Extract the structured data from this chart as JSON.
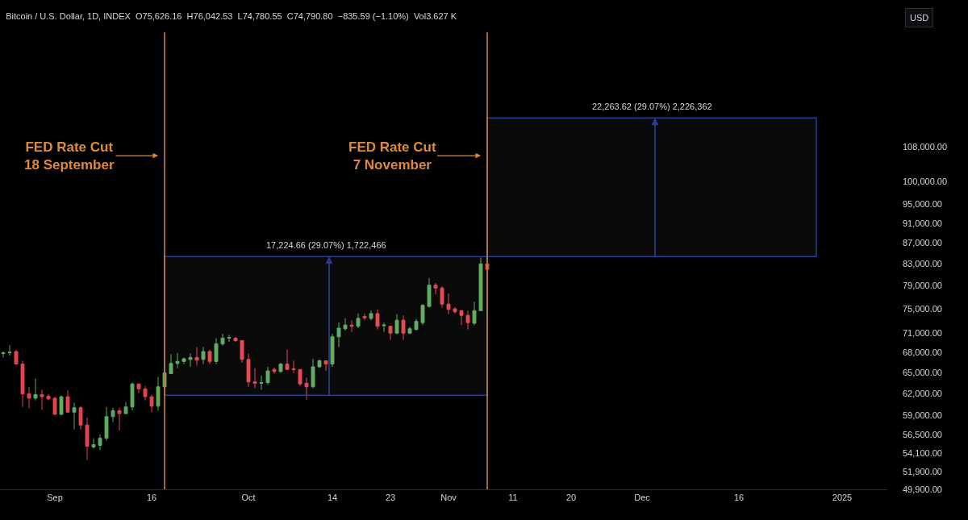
{
  "chart_data": {
    "type": "candlestick",
    "title": "Bitcoin / U.S. Dollar, 1D, INDEX  O75,626.16  H76,042.53  L74,780.55  C74,790.80  −835.59 (−1.10%)  Vol3.627 K",
    "colors": [
      "#5dab5d",
      "#5dab5d",
      "#e5444d",
      "#e5444d",
      "#e5444d",
      "#5dab5d",
      "#e5444d",
      "#e5444d",
      "#e5444d",
      "#5dab5d",
      "#e5444d",
      "#5dab5d",
      "#e5444d",
      "#e5444d",
      "#5dab5d",
      "#5dab5d",
      "#5dab5d",
      "#5dab5d",
      "#e5444d",
      "#5dab5d",
      "#5dab5d",
      "#e5444d",
      "#e5444d",
      "#e5444d",
      "#5dab5d",
      "#5dab5d",
      "#5dab5d",
      "#5dab5d",
      "#5dab5d",
      "#5dab5d",
      "#e5444d",
      "#5dab5d",
      "#e5444d",
      "#5dab5d",
      "#5dab5d",
      "#5dab5d",
      "#e5444d",
      "#e5444d",
      "#e5444d",
      "#e5444d",
      "#5dab5d",
      "#5dab5d",
      "#e5444d",
      "#5dab5d",
      "#e5444d",
      "#e5444d",
      "#e5444d",
      "#e5444d",
      "#5dab5d",
      "#5dab5d",
      "#e5444d",
      "#5dab5d",
      "#5dab5d",
      "#5dab5d",
      "#e5444d",
      "#5dab5d",
      "#e5444d",
      "#5dab5d",
      "#e5444d",
      "#5dab5d",
      "#e5444d",
      "#5dab5d",
      "#e5444d",
      "#5dab5d",
      "#5dab5d",
      "#5dab5d",
      "#5dab5d",
      "#e5444d",
      "#e5444d",
      "#e5444d",
      "#e5444d",
      "#e5444d",
      "#e5444d",
      "#5dab5d",
      "#5dab5d",
      "#e5444d"
    ],
    "x": [
      "2024-08-24",
      "2024-08-25",
      "2024-08-26",
      "2024-08-27",
      "2024-08-28",
      "2024-08-29",
      "2024-08-30",
      "2024-08-31",
      "2024-09-01",
      "2024-09-02",
      "2024-09-03",
      "2024-09-04",
      "2024-09-05",
      "2024-09-06",
      "2024-09-07",
      "2024-09-08",
      "2024-09-09",
      "2024-09-10",
      "2024-09-11",
      "2024-09-12",
      "2024-09-13",
      "2024-09-14",
      "2024-09-15",
      "2024-09-16",
      "2024-09-17",
      "2024-09-18",
      "2024-09-19",
      "2024-09-20",
      "2024-09-21",
      "2024-09-22",
      "2024-09-23",
      "2024-09-24",
      "2024-09-25",
      "2024-09-26",
      "2024-09-27",
      "2024-09-28",
      "2024-09-29",
      "2024-09-30",
      "2024-10-01",
      "2024-10-02",
      "2024-10-03",
      "2024-10-04",
      "2024-10-05",
      "2024-10-06",
      "2024-10-07",
      "2024-10-08",
      "2024-10-09",
      "2024-10-10",
      "2024-10-11",
      "2024-10-12",
      "2024-10-13",
      "2024-10-14",
      "2024-10-15",
      "2024-10-16",
      "2024-10-17",
      "2024-10-18",
      "2024-10-19",
      "2024-10-20",
      "2024-10-21",
      "2024-10-22",
      "2024-10-23",
      "2024-10-24",
      "2024-10-25",
      "2024-10-26",
      "2024-10-27",
      "2024-10-28",
      "2024-10-29",
      "2024-10-30",
      "2024-10-31",
      "2024-11-01",
      "2024-11-02",
      "2024-11-03",
      "2024-11-04",
      "2024-11-05",
      "2024-11-06",
      "2024-11-07"
    ],
    "ohlc": [
      [
        67800,
        68100,
        67200,
        67900
      ],
      [
        67900,
        69100,
        67500,
        68000
      ],
      [
        68100,
        68400,
        66200,
        66200
      ],
      [
        66200,
        66700,
        60100,
        61900
      ],
      [
        61900,
        62900,
        59900,
        61300
      ],
      [
        61300,
        64100,
        61000,
        61800
      ],
      [
        61800,
        62500,
        59700,
        61500
      ],
      [
        61600,
        61900,
        61000,
        61200
      ],
      [
        61300,
        61500,
        59100,
        59100
      ],
      [
        59100,
        61700,
        59000,
        61500
      ],
      [
        61500,
        62400,
        59300,
        59400
      ],
      [
        59400,
        60700,
        57100,
        60000
      ],
      [
        60000,
        60200,
        57100,
        57700
      ],
      [
        57700,
        58700,
        53300,
        55000
      ],
      [
        54900,
        56000,
        54700,
        55200
      ],
      [
        55100,
        56500,
        54500,
        56000
      ],
      [
        56000,
        60100,
        55700,
        58800
      ],
      [
        58800,
        60000,
        58100,
        59600
      ],
      [
        59600,
        60000,
        57000,
        59200
      ],
      [
        59200,
        60800,
        59200,
        60100
      ],
      [
        60100,
        63500,
        59600,
        63300
      ],
      [
        63300,
        63400,
        62000,
        62600
      ],
      [
        62600,
        63000,
        61000,
        61500
      ],
      [
        61500,
        61800,
        59400,
        60200
      ],
      [
        60200,
        64300,
        59600,
        62900
      ],
      [
        62900,
        65200,
        62700,
        64900
      ],
      [
        64800,
        67700,
        64800,
        66300
      ],
      [
        66300,
        67900,
        65600,
        66600
      ],
      [
        66600,
        67200,
        66200,
        67000
      ],
      [
        66900,
        67800,
        65800,
        67200
      ],
      [
        67200,
        68800,
        66000,
        66800
      ],
      [
        66900,
        68800,
        66200,
        68100
      ],
      [
        68100,
        68400,
        66200,
        66600
      ],
      [
        66600,
        70200,
        66200,
        69300
      ],
      [
        69300,
        70900,
        69000,
        70200
      ],
      [
        70200,
        70700,
        69600,
        70300
      ],
      [
        70200,
        70400,
        69600,
        69800
      ],
      [
        69800,
        69900,
        66400,
        66900
      ],
      [
        66900,
        67800,
        62900,
        63600
      ],
      [
        63600,
        65600,
        62700,
        63400
      ],
      [
        63400,
        64500,
        62500,
        63500
      ],
      [
        63500,
        65800,
        63200,
        65200
      ],
      [
        65400,
        65700,
        64800,
        65100
      ],
      [
        65100,
        66400,
        64900,
        66200
      ],
      [
        66200,
        68400,
        65400,
        65400
      ],
      [
        65500,
        66700,
        64900,
        65400
      ],
      [
        65400,
        65400,
        63000,
        63300
      ],
      [
        63400,
        64200,
        61100,
        62900
      ],
      [
        62900,
        67000,
        62700,
        65800
      ],
      [
        65800,
        66900,
        65700,
        66700
      ],
      [
        66700,
        66700,
        65200,
        66200
      ],
      [
        66200,
        70900,
        65800,
        70400
      ],
      [
        70400,
        72700,
        68800,
        71800
      ],
      [
        71700,
        73400,
        71400,
        72300
      ],
      [
        72300,
        73100,
        71200,
        72100
      ],
      [
        72100,
        74200,
        71800,
        73400
      ],
      [
        73700,
        74200,
        73100,
        73500
      ],
      [
        73400,
        74700,
        73100,
        74200
      ],
      [
        74200,
        74900,
        71600,
        72100
      ],
      [
        72200,
        72700,
        71200,
        72300
      ],
      [
        72100,
        72100,
        69900,
        71000
      ],
      [
        71000,
        74100,
        70800,
        73100
      ],
      [
        73100,
        73900,
        69900,
        71000
      ],
      [
        71000,
        72000,
        70800,
        71700
      ],
      [
        71600,
        73300,
        71400,
        72900
      ],
      [
        72700,
        75800,
        72300,
        75600
      ],
      [
        75400,
        80400,
        75200,
        79100
      ],
      [
        79100,
        79500,
        77500,
        78600
      ],
      [
        78600,
        78900,
        75200,
        75800
      ],
      [
        75800,
        77600,
        74100,
        74900
      ],
      [
        75000,
        75300,
        74200,
        74500
      ],
      [
        74700,
        74700,
        72300,
        73900
      ],
      [
        73900,
        74700,
        71600,
        72700
      ],
      [
        72600,
        76200,
        72300,
        74700
      ],
      [
        74700,
        84200,
        74700,
        83000
      ],
      [
        83000,
        83300,
        81800,
        82000
      ]
    ],
    "xlim": [
      "2024-08-23T12:00",
      "2025-01-08"
    ],
    "xticks": [
      {
        "value": "2024-09-01",
        "label": "Sep"
      },
      {
        "value": "2024-09-16",
        "label": "16"
      },
      {
        "value": "2024-10-01",
        "label": "Oct"
      },
      {
        "value": "2024-10-14",
        "label": "14"
      },
      {
        "value": "2024-10-23",
        "label": "23"
      },
      {
        "value": "2024-11-01",
        "label": "Nov"
      },
      {
        "value": "2024-11-11",
        "label": "11"
      },
      {
        "value": "2024-11-20",
        "label": "20"
      },
      {
        "value": "2024-12-01",
        "label": "Dec"
      },
      {
        "value": "2024-12-16",
        "label": "16"
      },
      {
        "value": "2025-01-01",
        "label": "2025"
      }
    ],
    "log": true,
    "ylim": [
      49900,
      140000
    ],
    "yticks": [
      {
        "value": 49900,
        "label": "49,900.00"
      },
      {
        "value": 51900,
        "label": "51,900.00"
      },
      {
        "value": 54100,
        "label": "54,100.00"
      },
      {
        "value": 56500,
        "label": "56,500.00"
      },
      {
        "value": 59000,
        "label": "59,000.00"
      },
      {
        "value": 62000,
        "label": "62,000.00"
      },
      {
        "value": 65000,
        "label": "65,000.00"
      },
      {
        "value": 68000,
        "label": "68,000.00"
      },
      {
        "value": 71000,
        "label": "71,000.00"
      },
      {
        "value": 75000,
        "label": "75,000.00"
      },
      {
        "value": 79000,
        "label": "79,000.00"
      },
      {
        "value": 83000,
        "label": "83,000.00"
      },
      {
        "value": 87000,
        "label": "87,000.00"
      },
      {
        "value": 91000,
        "label": "91,000.00"
      },
      {
        "value": 95000,
        "label": "95,000.00"
      },
      {
        "value": 100000,
        "label": "100,000.00"
      },
      {
        "value": 108000,
        "label": "108,000.00"
      }
    ],
    "ref_lines": [
      {
        "axis": "x",
        "value": "2024-09-18",
        "label": "FED Rate Cut\n18 September",
        "color": "#e08a35"
      },
      {
        "axis": "x",
        "value": "2024-11-07",
        "label": "FED Rate Cut\n7 November",
        "color": "#e08a35"
      }
    ],
    "series": [
      {
        "type": "area",
        "color": "#2b3b8f",
        "x": [
          "2024-09-18",
          "2024-09-18",
          "2024-11-07",
          "2024-11-07",
          "2024-09-18"
        ],
        "values": [
          61700,
          84400,
          84400,
          61700,
          61700
        ]
      },
      {
        "type": "area",
        "color": "#2b3b8f",
        "x": [
          "2024-11-07",
          "2024-11-07",
          "2024-12-28",
          "2024-12-28",
          "2024-11-07"
        ],
        "values": [
          84400,
          115400,
          115400,
          84400,
          84400
        ]
      }
    ],
    "annotations": [
      "USD",
      {
        "text": "17,224.66 (29.07%) 1,722,466",
        "x": "2024-10-13",
        "y": 84400
      },
      {
        "text": "22,263.62 (29.07%) 2,226,362",
        "x": "2024-12-02T12:00",
        "y": 115400
      }
    ]
  }
}
